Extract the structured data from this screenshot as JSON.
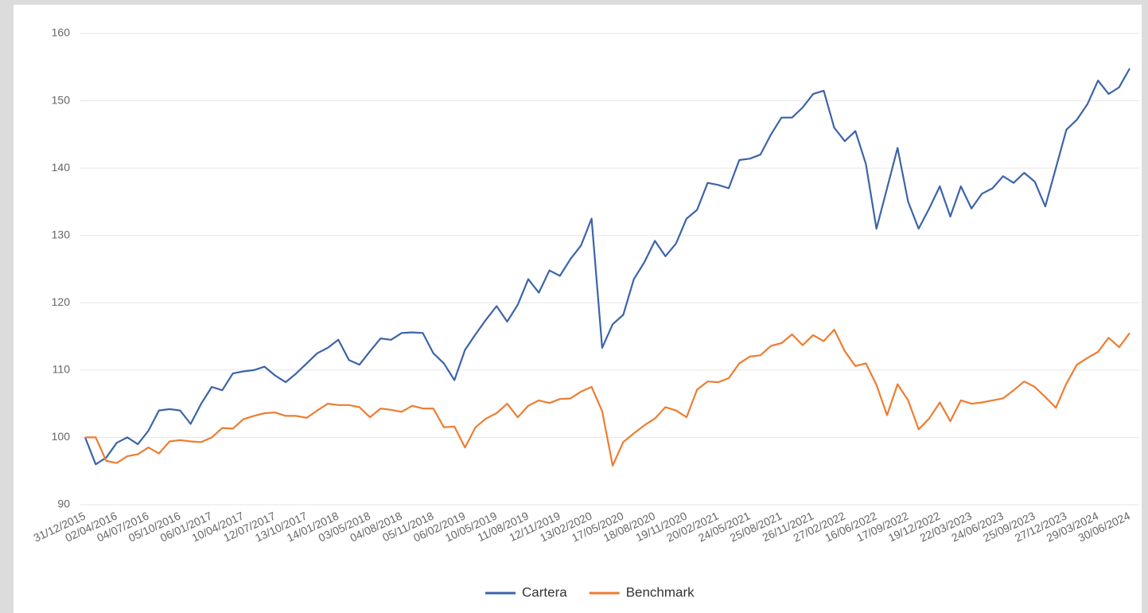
{
  "chart_data": {
    "type": "line",
    "categories": [
      "31/12/2015",
      null,
      null,
      "02/04/2016",
      null,
      null,
      "04/07/2016",
      null,
      null,
      "05/10/2016",
      null,
      null,
      "06/01/2017",
      null,
      null,
      "10/04/2017",
      null,
      null,
      "12/07/2017",
      null,
      null,
      "13/10/2017",
      null,
      null,
      "14/01/2018",
      null,
      null,
      "03/05/2018",
      null,
      null,
      "04/08/2018",
      null,
      null,
      "05/11/2018",
      null,
      null,
      "06/02/2019",
      null,
      null,
      "10/05/2019",
      null,
      null,
      "11/08/2019",
      null,
      null,
      "12/11/2019",
      null,
      null,
      "13/02/2020",
      null,
      null,
      "17/05/2020",
      null,
      null,
      "18/08/2020",
      null,
      null,
      "19/11/2020",
      null,
      null,
      "20/02/2021",
      null,
      null,
      "24/05/2021",
      null,
      null,
      "25/08/2021",
      null,
      null,
      "26/11/2021",
      null,
      null,
      "27/02/2022",
      null,
      null,
      "16/06/2022",
      null,
      null,
      "17/09/2022",
      null,
      null,
      "19/12/2022",
      null,
      null,
      "22/03/2023",
      null,
      null,
      "24/06/2023",
      null,
      null,
      "25/09/2023",
      null,
      null,
      "27/12/2023",
      null,
      null,
      "29/03/2024",
      null,
      null,
      "30/06/2024"
    ],
    "series": [
      {
        "name": "Cartera",
        "color": "#3c64aa",
        "values": [
          100,
          96,
          97,
          99.2,
          100,
          99,
          101,
          104,
          104.2,
          104,
          102,
          105,
          107.5,
          107,
          109.5,
          109.8,
          110,
          110.5,
          109.2,
          108.2,
          109.5,
          111,
          112.5,
          113.3,
          114.5,
          111.5,
          110.8,
          112.8,
          114.7,
          114.5,
          115.5,
          115.6,
          115.5,
          112.5,
          111,
          108.5,
          113,
          115.3,
          117.5,
          119.5,
          117.2,
          119.7,
          123.5,
          121.5,
          124.8,
          124,
          126.5,
          128.5,
          132.5,
          113.3,
          116.8,
          118.2,
          123.5,
          126,
          129.2,
          126.9,
          128.8,
          132.5,
          133.8,
          137.8,
          137.5,
          137,
          141.2,
          141.4,
          142,
          145,
          147.5,
          147.5,
          149,
          151,
          151.5,
          146,
          144,
          145.5,
          140.6,
          131,
          137,
          143,
          135,
          131,
          134,
          137.3,
          132.8,
          137.3,
          134,
          136.2,
          137,
          138.8,
          137.8,
          139.3,
          138,
          134.3,
          140,
          145.7,
          147.2,
          149.5,
          153,
          151,
          152,
          154.8
        ]
      },
      {
        "name": "Benchmark",
        "color": "#ed7d31",
        "values": [
          100,
          100,
          96.5,
          96.2,
          97.2,
          97.5,
          98.5,
          97.6,
          99.4,
          99.6,
          99.4,
          99.3,
          100,
          101.4,
          101.3,
          102.7,
          103.2,
          103.6,
          103.7,
          103.2,
          103.2,
          102.9,
          104,
          105,
          104.8,
          104.8,
          104.5,
          103,
          104.3,
          104.1,
          103.8,
          104.7,
          104.3,
          104.3,
          101.5,
          101.6,
          98.5,
          101.5,
          102.8,
          103.6,
          105,
          103,
          104.7,
          105.5,
          105.1,
          105.7,
          105.8,
          106.8,
          107.5,
          103.9,
          95.8,
          99.3,
          100.6,
          101.8,
          102.8,
          104.5,
          104,
          103,
          107.1,
          108.3,
          108.2,
          108.8,
          111,
          112,
          112.2,
          113.6,
          114,
          115.3,
          113.7,
          115.2,
          114.3,
          116,
          112.8,
          110.6,
          111,
          107.8,
          103.3,
          107.9,
          105.5,
          101.2,
          102.8,
          105.2,
          102.4,
          105.5,
          105,
          105.2,
          105.5,
          105.8,
          107,
          108.3,
          107.5,
          106,
          104.4,
          108,
          110.8,
          111.8,
          112.7,
          114.8,
          113.4,
          115.5
        ]
      }
    ],
    "ylim": [
      90,
      160
    ],
    "yticks": [
      90,
      100,
      110,
      120,
      130,
      140,
      150,
      160
    ],
    "grid": true,
    "legend": "bottom"
  }
}
